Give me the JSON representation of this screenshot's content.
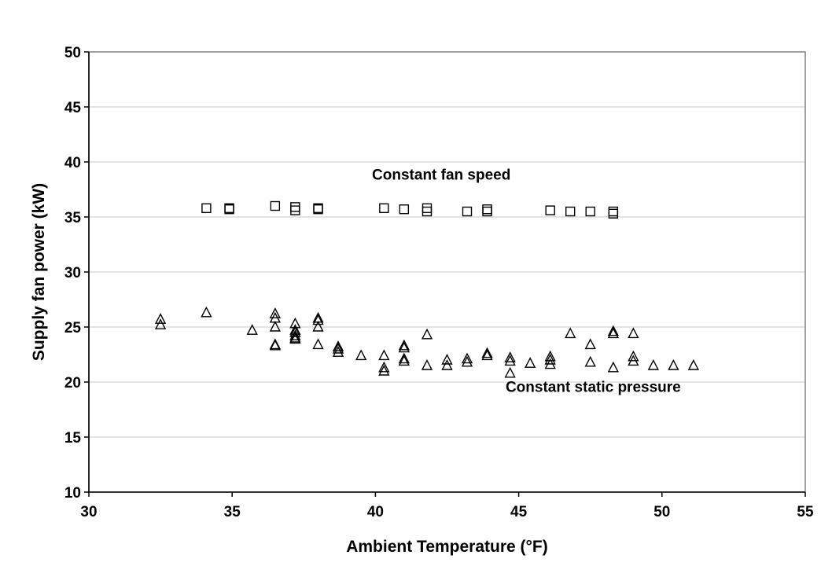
{
  "chart_data": {
    "type": "scatter",
    "title": "",
    "xlabel": "Ambient Temperature (°F)",
    "ylabel": "Supply fan power (kW)",
    "xlim": [
      30,
      55
    ],
    "ylim": [
      10,
      50
    ],
    "xticks": [
      30,
      35,
      40,
      45,
      50,
      55
    ],
    "yticks": [
      10,
      15,
      20,
      25,
      30,
      35,
      40,
      45,
      50
    ],
    "grid": "horizontal",
    "legend": "none",
    "series": [
      {
        "marker": "square",
        "points": [
          [
            34.1,
            35.8
          ],
          [
            34.9,
            35.8
          ],
          [
            34.9,
            35.7
          ],
          [
            36.5,
            36.0
          ],
          [
            37.2,
            35.9
          ],
          [
            37.2,
            35.6
          ],
          [
            38.0,
            35.8
          ],
          [
            38.0,
            35.7
          ],
          [
            40.3,
            35.8
          ],
          [
            41.0,
            35.7
          ],
          [
            41.8,
            35.8
          ],
          [
            41.8,
            35.5
          ],
          [
            43.2,
            35.5
          ],
          [
            43.9,
            35.7
          ],
          [
            43.9,
            35.5
          ],
          [
            46.1,
            35.6
          ],
          [
            46.8,
            35.5
          ],
          [
            47.5,
            35.5
          ],
          [
            48.3,
            35.5
          ],
          [
            48.3,
            35.3
          ]
        ]
      },
      {
        "marker": "triangle",
        "points": [
          [
            32.5,
            25.7
          ],
          [
            32.5,
            25.2
          ],
          [
            34.1,
            26.3
          ],
          [
            35.7,
            24.7
          ],
          [
            36.5,
            26.2
          ],
          [
            36.5,
            25.8
          ],
          [
            36.5,
            25.0
          ],
          [
            36.5,
            23.4
          ],
          [
            36.5,
            23.3
          ],
          [
            37.2,
            25.3
          ],
          [
            37.2,
            24.7
          ],
          [
            37.2,
            24.5
          ],
          [
            37.2,
            24.2
          ],
          [
            37.2,
            24.0
          ],
          [
            37.2,
            23.9
          ],
          [
            38.0,
            25.8
          ],
          [
            38.0,
            25.6
          ],
          [
            38.0,
            25.0
          ],
          [
            38.0,
            23.4
          ],
          [
            38.7,
            23.2
          ],
          [
            38.7,
            23.0
          ],
          [
            38.7,
            22.7
          ],
          [
            39.5,
            22.4
          ],
          [
            40.3,
            22.4
          ],
          [
            40.3,
            21.3
          ],
          [
            40.3,
            21.0
          ],
          [
            41.0,
            23.3
          ],
          [
            41.0,
            23.1
          ],
          [
            41.0,
            22.1
          ],
          [
            41.0,
            21.9
          ],
          [
            41.8,
            24.3
          ],
          [
            41.8,
            21.5
          ],
          [
            42.5,
            22.0
          ],
          [
            42.5,
            21.5
          ],
          [
            43.2,
            22.1
          ],
          [
            43.2,
            21.8
          ],
          [
            43.9,
            22.6
          ],
          [
            43.9,
            22.4
          ],
          [
            44.7,
            22.2
          ],
          [
            44.7,
            21.9
          ],
          [
            44.7,
            20.8
          ],
          [
            45.4,
            21.7
          ],
          [
            46.1,
            22.3
          ],
          [
            46.1,
            22.0
          ],
          [
            46.1,
            21.6
          ],
          [
            46.8,
            24.4
          ],
          [
            47.5,
            23.4
          ],
          [
            47.5,
            21.8
          ],
          [
            48.3,
            24.6
          ],
          [
            48.3,
            24.4
          ],
          [
            48.3,
            21.3
          ],
          [
            49.0,
            24.4
          ],
          [
            49.0,
            22.3
          ],
          [
            49.0,
            21.9
          ],
          [
            49.7,
            21.5
          ],
          [
            50.4,
            21.5
          ],
          [
            51.1,
            21.5
          ]
        ]
      }
    ],
    "annotations": [
      {
        "text": "Constant fan speed",
        "x": 42.3,
        "y": 38.4
      },
      {
        "text": "Constant static pressure",
        "x": 47.6,
        "y": 19.1
      }
    ]
  }
}
